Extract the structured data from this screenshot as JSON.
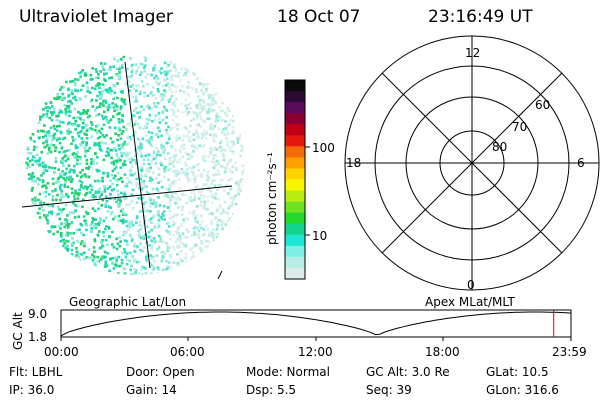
{
  "header": {
    "title": "Ultraviolet Imager",
    "date": "18 Oct 07",
    "time": "23:16:49 UT"
  },
  "colorbar": {
    "label": "photon cm⁻²s⁻¹",
    "ticks": [
      "100",
      "10"
    ],
    "colors": [
      "#0a0a0a",
      "#2a0a33",
      "#5a0a5a",
      "#8a0030",
      "#c00018",
      "#e21a0c",
      "#f36a06",
      "#ffa000",
      "#ffd200",
      "#f7f600",
      "#b8ef10",
      "#6ee21e",
      "#22d82a",
      "#14d48c",
      "#1ee6d6",
      "#7ef0e6",
      "#b8ece6",
      "#dcecea"
    ]
  },
  "polar": {
    "mlt_labels": [
      "12",
      "18",
      "6",
      "0"
    ],
    "mlat_labels": [
      "60",
      "70",
      "80"
    ]
  },
  "orbit": {
    "left_label": "Geographic Lat/Lon",
    "right_label": "Apex MLat/MLT",
    "ylabel": "GC Alt",
    "yticks": [
      "9.0",
      "1.8"
    ],
    "xticks": [
      "00:00",
      "06:00",
      "12:00",
      "18:00",
      "23:59"
    ],
    "current_time_fraction": 0.966
  },
  "status": {
    "flt": "Flt: LBHL",
    "door": "Door: Open",
    "mode": "Mode: Normal",
    "gc_alt": "GC Alt: 3.0 Re",
    "glat": "GLat:  10.5",
    "ip": "IP: 36.0",
    "gain": "Gain: 14",
    "dsp": "Dsp:    5.5",
    "seq": "Seq: 39",
    "glon": "GLon: 316.6"
  }
}
